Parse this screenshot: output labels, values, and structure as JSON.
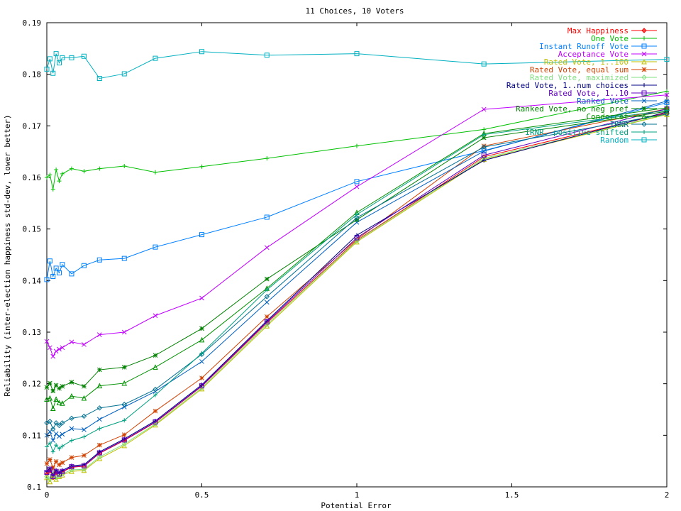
{
  "chart_data": {
    "type": "line",
    "title": "11 Choices, 10 Voters",
    "xlabel": "Potential Error",
    "ylabel": "Reliability (inter-election happiness std-dev, lower better)",
    "xlim": [
      0,
      2
    ],
    "ylim": [
      0.1,
      0.19
    ],
    "x_ticks": [
      0,
      0.5,
      1,
      1.5,
      2
    ],
    "x_tick_labels": [
      "0",
      "0.5",
      "1",
      "1.5",
      "2"
    ],
    "y_ticks": [
      0.1,
      0.11,
      0.12,
      0.13,
      0.14,
      0.15,
      0.16,
      0.17,
      0.18,
      0.19
    ],
    "y_tick_labels": [
      "0.1",
      "0.11",
      "0.12",
      "0.13",
      "0.14",
      "0.15",
      "0.16",
      "0.17",
      "0.18",
      "0.19"
    ],
    "grid": false,
    "legend_position": "top-right",
    "x": [
      0,
      0.01,
      0.02,
      0.03,
      0.04,
      0.05,
      0.08,
      0.12,
      0.17,
      0.25,
      0.35,
      0.5,
      0.71,
      1.0,
      1.41,
      2.0
    ],
    "series": [
      {
        "name": "Max Happiness",
        "color": "#ff0000",
        "marker": "plus-diamond",
        "values": [
          0.1025,
          0.1032,
          0.1018,
          0.1028,
          0.1025,
          0.1029,
          0.1038,
          0.104,
          0.1065,
          0.109,
          0.1125,
          0.1195,
          0.1318,
          0.1478,
          0.164,
          0.1725
        ]
      },
      {
        "name": "One Vote",
        "color": "#00c000",
        "marker": "plus",
        "values": [
          0.16,
          0.1605,
          0.1577,
          0.1615,
          0.1593,
          0.1607,
          0.1617,
          0.1612,
          0.1617,
          0.1622,
          0.161,
          0.1621,
          0.1637,
          0.1661,
          0.1693,
          0.1767
        ]
      },
      {
        "name": "Instant Runoff Vote",
        "color": "#0080ff",
        "marker": "square",
        "values": [
          0.1402,
          0.1438,
          0.1408,
          0.1424,
          0.1415,
          0.1431,
          0.1413,
          0.1429,
          0.144,
          0.1443,
          0.1465,
          0.1489,
          0.1523,
          0.1592,
          0.1652,
          0.1745
        ]
      },
      {
        "name": "Acceptance Vote",
        "color": "#c000ff",
        "marker": "cross",
        "values": [
          0.1282,
          0.127,
          0.1253,
          0.1263,
          0.1267,
          0.127,
          0.1281,
          0.1276,
          0.1295,
          0.13,
          0.1332,
          0.1366,
          0.1464,
          0.1582,
          0.1732,
          0.176
        ]
      },
      {
        "name": "Rated Vote, 1..100",
        "color": "#c0c000",
        "marker": "triangle",
        "values": [
          0.1018,
          0.101,
          0.1023,
          0.1015,
          0.102,
          0.1023,
          0.103,
          0.1032,
          0.1055,
          0.108,
          0.112,
          0.119,
          0.1312,
          0.1475,
          0.1635,
          0.1722
        ]
      },
      {
        "name": "Rated Vote, equal sum",
        "color": "#d04000",
        "marker": "asterisk",
        "values": [
          0.1045,
          0.1053,
          0.1037,
          0.1049,
          0.1043,
          0.1047,
          0.1057,
          0.1061,
          0.1081,
          0.1101,
          0.1147,
          0.1211,
          0.133,
          0.148,
          0.1661,
          0.1733
        ]
      },
      {
        "name": "Rated Vote, maximized",
        "color": "#80e080",
        "marker": "diamond",
        "values": [
          0.102,
          0.1015,
          0.1025,
          0.1018,
          0.1022,
          0.1025,
          0.1033,
          0.1034,
          0.1058,
          0.1083,
          0.1122,
          0.1192,
          0.1315,
          0.1477,
          0.1637,
          0.1723
        ]
      },
      {
        "name": "Rated Vote, 1..num choices",
        "color": "#000080",
        "marker": "plus",
        "values": [
          0.103,
          0.1036,
          0.1022,
          0.1032,
          0.1027,
          0.1032,
          0.1041,
          0.1043,
          0.1068,
          0.1093,
          0.1128,
          0.1198,
          0.1322,
          0.1488,
          0.1633,
          0.1727
        ]
      },
      {
        "name": "Rated Vote, 1..10",
        "color": "#6000c0",
        "marker": "square",
        "values": [
          0.1028,
          0.1034,
          0.102,
          0.103,
          0.1025,
          0.103,
          0.1039,
          0.1041,
          0.1066,
          0.1091,
          0.1126,
          0.1196,
          0.132,
          0.1483,
          0.1643,
          0.1733
        ]
      },
      {
        "name": "Ranked Vote",
        "color": "#0060c0",
        "marker": "cross",
        "values": [
          0.11,
          0.1107,
          0.109,
          0.1103,
          0.1098,
          0.1102,
          0.1113,
          0.1111,
          0.1131,
          0.1155,
          0.1185,
          0.1243,
          0.1358,
          0.1513,
          0.1651,
          0.1748
        ]
      },
      {
        "name": "Ranked Vote, no neg pref",
        "color": "#008000",
        "marker": "asterisk",
        "values": [
          0.1193,
          0.1201,
          0.1186,
          0.1197,
          0.1191,
          0.1195,
          0.1203,
          0.1195,
          0.1227,
          0.1232,
          0.1255,
          0.1307,
          0.1403,
          0.1518,
          0.1677,
          0.1728
        ]
      },
      {
        "name": "Condorcet",
        "color": "#009000",
        "marker": "triangle",
        "values": [
          0.117,
          0.1172,
          0.1152,
          0.117,
          0.1163,
          0.1162,
          0.1176,
          0.1172,
          0.1196,
          0.1201,
          0.1232,
          0.1285,
          0.1385,
          0.1532,
          0.1685,
          0.1735
        ]
      },
      {
        "name": "IRNR",
        "color": "#007090",
        "marker": "diamond",
        "values": [
          0.1124,
          0.1127,
          0.1112,
          0.1124,
          0.1119,
          0.1124,
          0.1133,
          0.1137,
          0.1153,
          0.116,
          0.1189,
          0.1257,
          0.1369,
          0.1522,
          0.1659,
          0.1723
        ]
      },
      {
        "name": "IRNR, positive shifted",
        "color": "#00a080",
        "marker": "plus",
        "values": [
          0.1078,
          0.1085,
          0.1068,
          0.1081,
          0.1074,
          0.1079,
          0.109,
          0.1097,
          0.1113,
          0.1129,
          0.1178,
          0.1259,
          0.1382,
          0.1528,
          0.1683,
          0.173
        ]
      },
      {
        "name": "Random",
        "color": "#00b0c0",
        "marker": "square",
        "values": [
          0.181,
          0.183,
          0.1802,
          0.184,
          0.1822,
          0.1832,
          0.1832,
          0.1835,
          0.1792,
          0.1801,
          0.1831,
          0.1844,
          0.1837,
          0.184,
          0.182,
          0.1829
        ]
      }
    ]
  }
}
